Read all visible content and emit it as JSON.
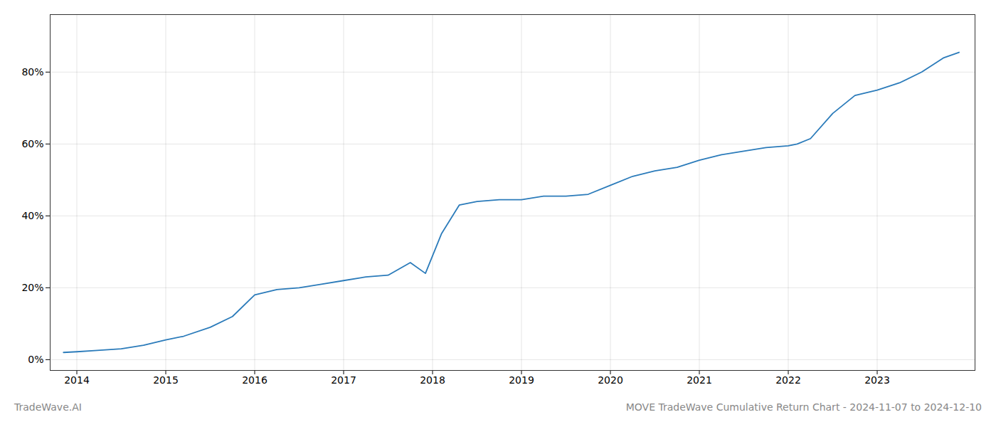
{
  "chart_data": {
    "type": "line",
    "x": [
      2013.85,
      2014.0,
      2014.2,
      2014.5,
      2014.75,
      2015.0,
      2015.2,
      2015.5,
      2015.75,
      2016.0,
      2016.25,
      2016.5,
      2016.75,
      2017.0,
      2017.25,
      2017.5,
      2017.75,
      2017.92,
      2018.1,
      2018.3,
      2018.5,
      2018.75,
      2019.0,
      2019.25,
      2019.5,
      2019.75,
      2020.0,
      2020.25,
      2020.5,
      2020.75,
      2021.0,
      2021.25,
      2021.5,
      2021.75,
      2022.0,
      2022.1,
      2022.25,
      2022.5,
      2022.75,
      2023.0,
      2023.25,
      2023.5,
      2023.75,
      2023.92
    ],
    "values": [
      0.02,
      0.022,
      0.025,
      0.03,
      0.04,
      0.055,
      0.065,
      0.09,
      0.12,
      0.18,
      0.195,
      0.2,
      0.21,
      0.22,
      0.23,
      0.235,
      0.27,
      0.24,
      0.35,
      0.43,
      0.44,
      0.445,
      0.445,
      0.455,
      0.455,
      0.46,
      0.485,
      0.51,
      0.525,
      0.535,
      0.555,
      0.57,
      0.58,
      0.59,
      0.595,
      0.6,
      0.615,
      0.685,
      0.735,
      0.75,
      0.77,
      0.8,
      0.84,
      0.855
    ],
    "color": "#2b7bba",
    "xlim": [
      2013.7,
      2024.1
    ],
    "xticks": [
      2014,
      2015,
      2016,
      2017,
      2018,
      2019,
      2020,
      2021,
      2022,
      2023
    ],
    "ylim": [
      -0.03,
      0.96
    ],
    "yticks": [
      {
        "value": 0,
        "label": "0%"
      },
      {
        "value": 0.2,
        "label": "20%"
      },
      {
        "value": 0.4,
        "label": "40%"
      },
      {
        "value": 0.6,
        "label": "60%"
      },
      {
        "value": 0.8,
        "label": "80%"
      }
    ],
    "grid": true,
    "annotations": [
      "TradeWave.AI",
      "MOVE TradeWave Cumulative Return Chart - 2024-11-07 to 2024-12-10"
    ]
  }
}
